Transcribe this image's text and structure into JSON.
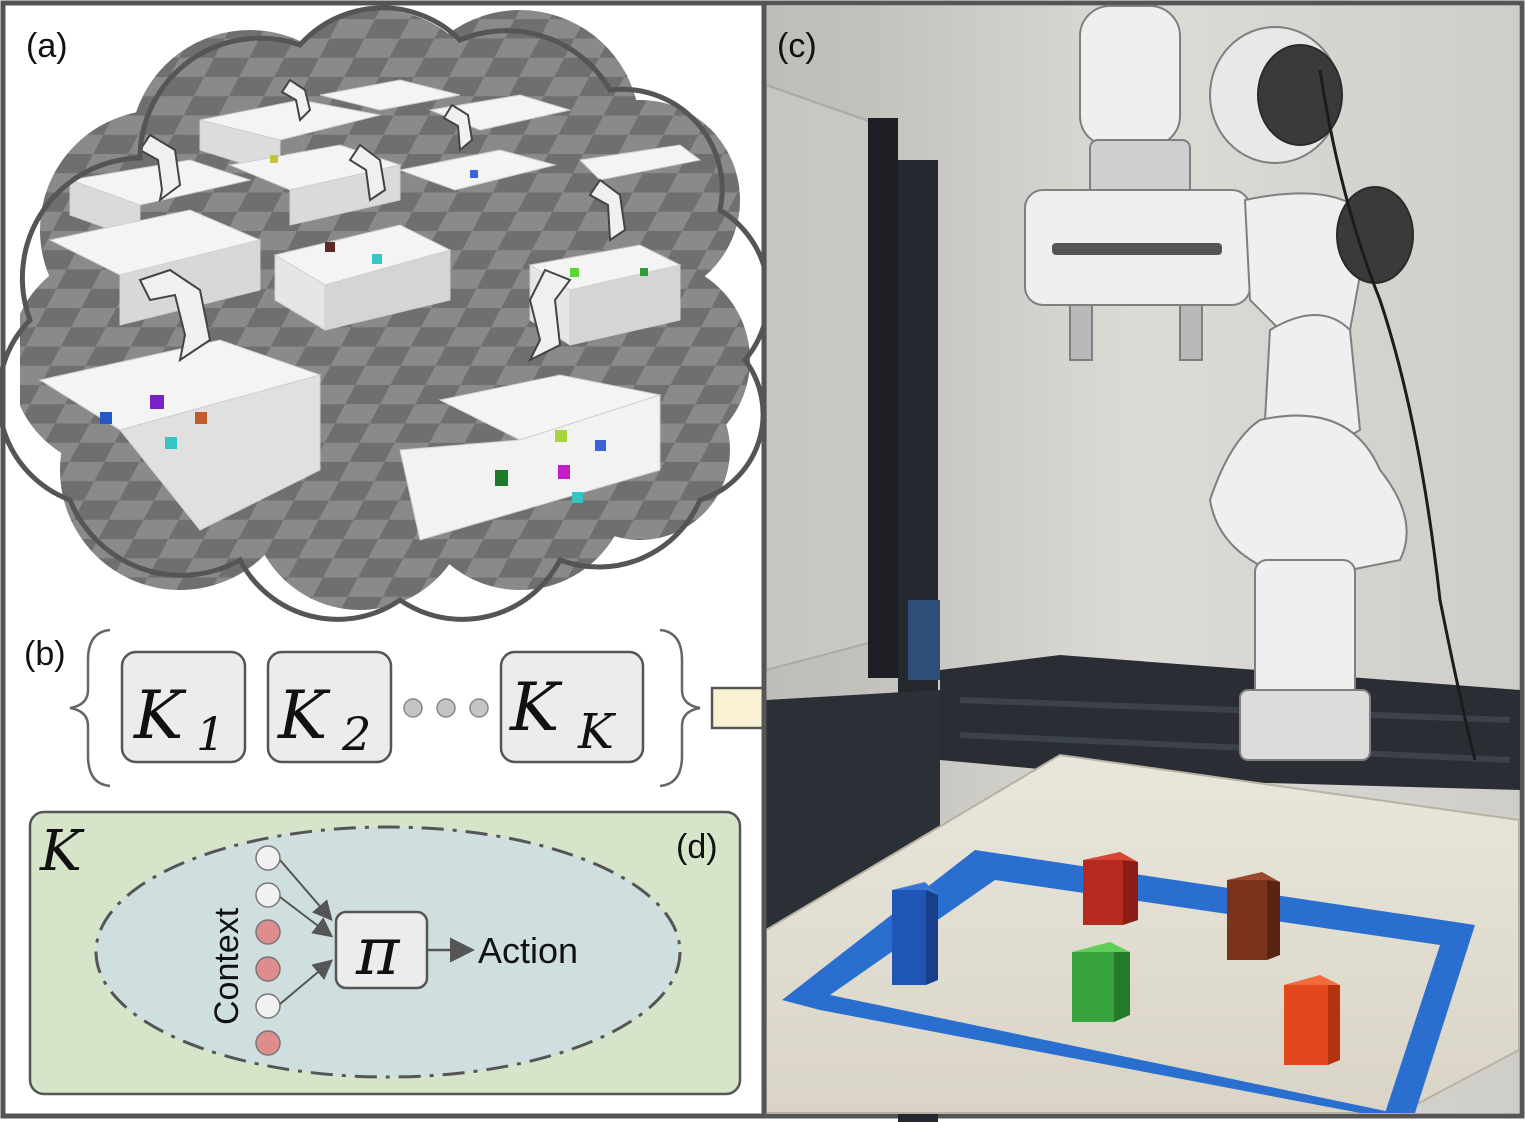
{
  "panels": {
    "a": {
      "label": "(a)"
    },
    "b": {
      "label": "(b)",
      "models": [
        {
          "symbol": "K",
          "subscript": "1"
        },
        {
          "symbol": "K",
          "subscript": "2"
        },
        {
          "symbol": "K",
          "subscript": "K"
        }
      ]
    },
    "c": {
      "label": "(c)"
    },
    "d": {
      "label": "(d)",
      "k_symbol": "K",
      "policy_symbol": "π",
      "input_label": "Context",
      "output_label": "Action"
    }
  },
  "colors": {
    "frame": "#555555",
    "model_box_fill": "#ececec",
    "arrow_fill": "#fbf2d6",
    "panel_d_fill": "#d6e4c9",
    "ellipse_fill": "#cfdfe0",
    "context_neutral": "#f1f1f1",
    "context_active": "#dd8d8d",
    "blue_tape": "#2a6fcf",
    "cube_blue": "#1f56b5",
    "cube_red": "#b42a1e",
    "cube_green": "#37a33a",
    "cube_brown": "#7a341e",
    "cube_orange": "#e3481c"
  }
}
